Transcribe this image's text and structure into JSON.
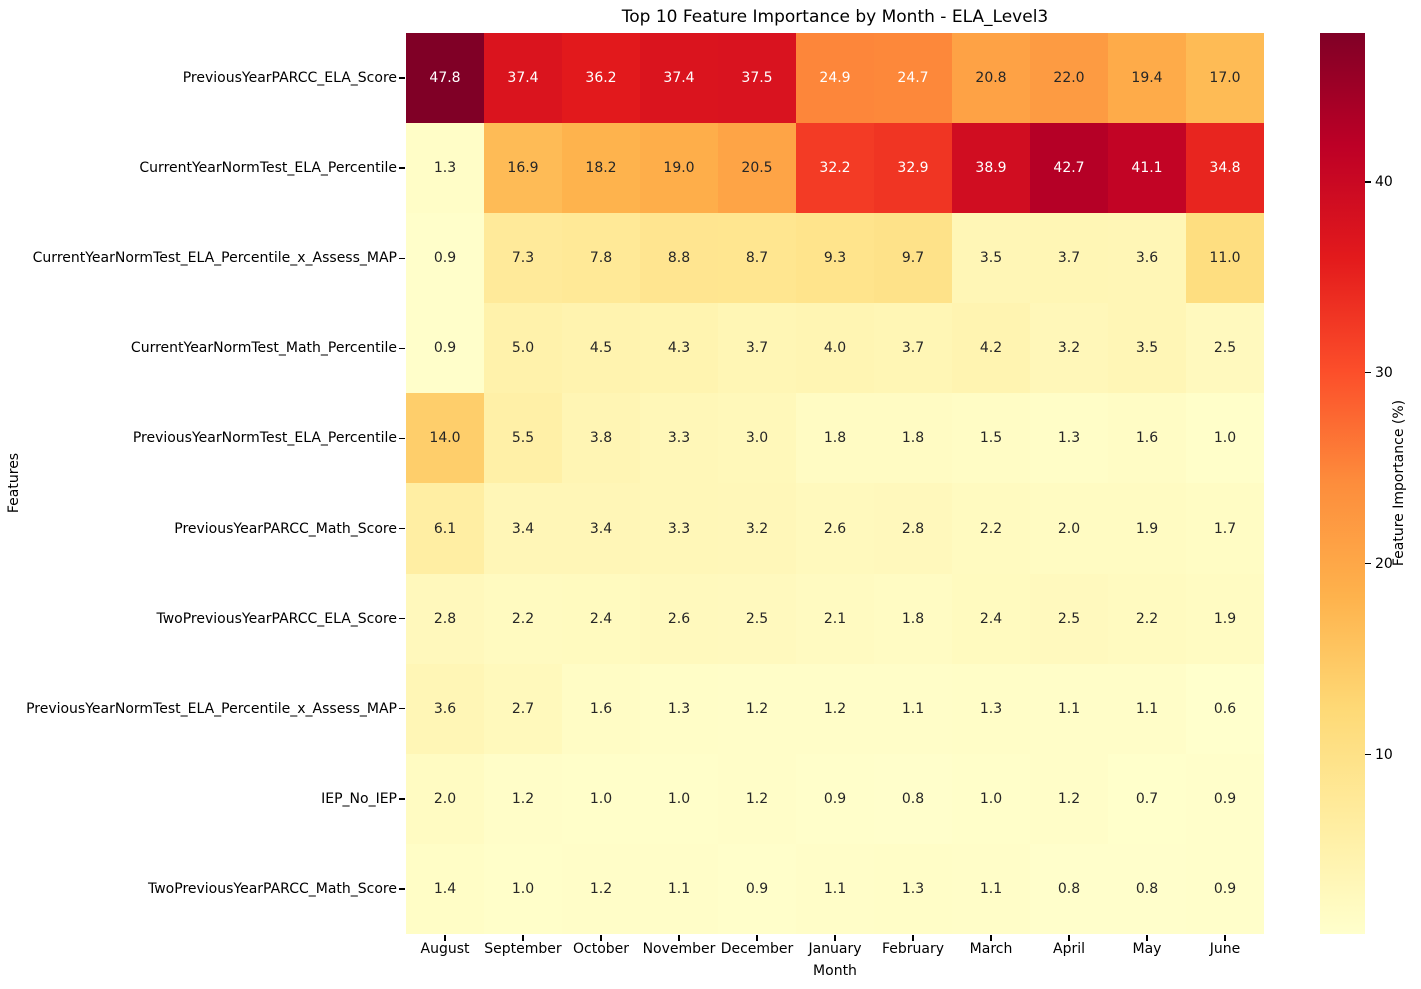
{
  "chart_data": {
    "type": "heatmap",
    "title": "Top 10 Feature Importance by Month - ELA_Level3",
    "xlabel": "Month",
    "ylabel": "Features",
    "colorbar_label": "Feature Importance (%)",
    "colorbar_ticks": [
      40,
      30,
      20,
      10
    ],
    "vmin": 0.6,
    "vmax": 47.8,
    "colormap_name": "YlOrRd",
    "colormap_stops": [
      "#ffffcc",
      "#ffeda0",
      "#fed976",
      "#feb24c",
      "#fd8d3c",
      "#fc4e2a",
      "#e31a1c",
      "#bd0026",
      "#800026"
    ],
    "annot_colors": {
      "light": "#ffffff",
      "dark": "#262626"
    },
    "grid": false,
    "legend_position": "right-colorbar",
    "categories": [
      "August",
      "September",
      "October",
      "November",
      "December",
      "January",
      "February",
      "March",
      "April",
      "May",
      "June"
    ],
    "series": [
      {
        "name": "PreviousYearPARCC_ELA_Score",
        "values": [
          47.8,
          37.4,
          36.2,
          37.4,
          37.5,
          24.9,
          24.7,
          20.8,
          22.0,
          19.4,
          17.0
        ]
      },
      {
        "name": "CurrentYearNormTest_ELA_Percentile",
        "values": [
          1.3,
          16.9,
          18.2,
          19.0,
          20.5,
          32.2,
          32.9,
          38.9,
          42.7,
          41.1,
          34.8
        ]
      },
      {
        "name": "CurrentYearNormTest_ELA_Percentile_x_Assess_MAP",
        "values": [
          0.9,
          7.3,
          7.8,
          8.8,
          8.7,
          9.3,
          9.7,
          3.5,
          3.7,
          3.6,
          11.0
        ]
      },
      {
        "name": "CurrentYearNormTest_Math_Percentile",
        "values": [
          0.9,
          5.0,
          4.5,
          4.3,
          3.7,
          4.0,
          3.7,
          4.2,
          3.2,
          3.5,
          2.5
        ]
      },
      {
        "name": "PreviousYearNormTest_ELA_Percentile",
        "values": [
          14.0,
          5.5,
          3.8,
          3.3,
          3.0,
          1.8,
          1.8,
          1.5,
          1.3,
          1.6,
          1.0
        ]
      },
      {
        "name": "PreviousYearPARCC_Math_Score",
        "values": [
          6.1,
          3.4,
          3.4,
          3.3,
          3.2,
          2.6,
          2.8,
          2.2,
          2.0,
          1.9,
          1.7
        ]
      },
      {
        "name": "TwoPreviousYearPARCC_ELA_Score",
        "values": [
          2.8,
          2.2,
          2.4,
          2.6,
          2.5,
          2.1,
          1.8,
          2.4,
          2.5,
          2.2,
          1.9
        ]
      },
      {
        "name": "PreviousYearNormTest_ELA_Percentile_x_Assess_MAP",
        "values": [
          3.6,
          2.7,
          1.6,
          1.3,
          1.2,
          1.2,
          1.1,
          1.3,
          1.1,
          1.1,
          0.6
        ]
      },
      {
        "name": "IEP_No_IEP",
        "values": [
          2.0,
          1.2,
          1.0,
          1.0,
          1.2,
          0.9,
          0.8,
          1.0,
          1.2,
          0.7,
          0.9
        ]
      },
      {
        "name": "TwoPreviousYearPARCC_Math_Score",
        "values": [
          1.4,
          1.0,
          1.2,
          1.1,
          0.9,
          1.1,
          1.3,
          1.1,
          0.8,
          0.8,
          0.9
        ]
      }
    ]
  }
}
